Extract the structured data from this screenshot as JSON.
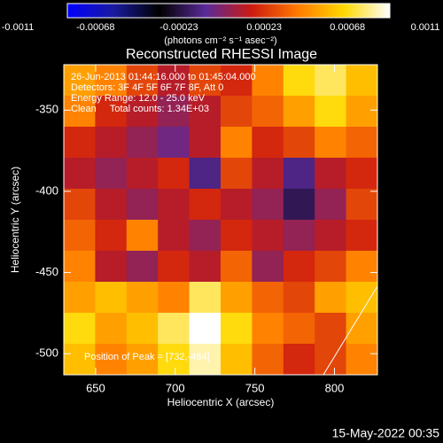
{
  "chart_data": {
    "type": "image",
    "title": "Reconstructed RHESSI Image",
    "xlabel": "Heliocentric X (arcsec)",
    "ylabel": "Heliocentric Y (arcsec)",
    "xlim": [
      630,
      827
    ],
    "ylim": [
      -513,
      -322
    ],
    "xticks": [
      650,
      700,
      750,
      800
    ],
    "yticks": [
      -350,
      -400,
      -450,
      -500
    ],
    "colorbar": {
      "label": "(photons cm⁻² s⁻¹ asec⁻²)",
      "lim": [
        -0.0011,
        0.0011
      ],
      "ticks": [
        -0.0011,
        -0.00068,
        -0.00023,
        0.00023,
        0.00068,
        0.0011
      ],
      "colors": [
        "#0000ff",
        "#1a1aa0",
        "#000000",
        "#5a2a9a",
        "#cc1a10",
        "#ff7a00",
        "#ffd800",
        "#ffffff"
      ]
    },
    "annotations": [
      "26-Jun-2013 01:44:16.000 to 01:45:04.000",
      "Detectors: 3F 4F 5F 6F 7F 8F, Att 0",
      "Energy Range: 12.0 - 25.0 keV",
      "Clean     Total counts: 1.34E+03"
    ],
    "peak_label": "Position of Peak = [732,-484]",
    "timestamp": "15-May-2022 00:35",
    "values": [
      [
        0.0006,
        0.0005,
        0.0003,
        0.0001,
        0.0003,
        0.0002,
        0.0005,
        0.0008,
        0.0009,
        0.0007
      ],
      [
        0.0005,
        0.0002,
        0.0001,
        0,
        0.0001,
        0.0003,
        0.0004,
        0.0006,
        0.0008,
        0.0006
      ],
      [
        0.0002,
        0.0001,
        0,
        -0.0001,
        0.0001,
        0.0005,
        0.0002,
        0.0003,
        0.0005,
        0.0004
      ],
      [
        0.0001,
        0,
        0.0001,
        0.0002,
        -0.0002,
        0.0003,
        0.0001,
        -0.0002,
        0.0001,
        0.0002
      ],
      [
        0.0003,
        0.0001,
        0,
        0.0001,
        0.0002,
        0.0001,
        0,
        -0.0003,
        0,
        0.0003
      ],
      [
        0.0004,
        0.0002,
        0.0005,
        0.0001,
        0,
        0.0002,
        0.0001,
        0,
        0.0001,
        0.0002
      ],
      [
        0.0005,
        0.0001,
        0,
        0.0002,
        0.0001,
        0.0004,
        0,
        0.0002,
        0.0003,
        0.0005
      ],
      [
        0.0006,
        0.0007,
        0.0006,
        0.0005,
        0.0009,
        0.0006,
        0.0004,
        0.0003,
        0.0006,
        0.0007
      ],
      [
        0.0008,
        0.0006,
        0.0007,
        0.0009,
        0.0011,
        0.0008,
        0.0005,
        0.0004,
        0.0003,
        0.0006
      ],
      [
        0.0007,
        0.0005,
        0.0006,
        0.0008,
        0.001,
        0.0007,
        0.0004,
        0.0002,
        0.0003,
        0.0005
      ]
    ]
  }
}
